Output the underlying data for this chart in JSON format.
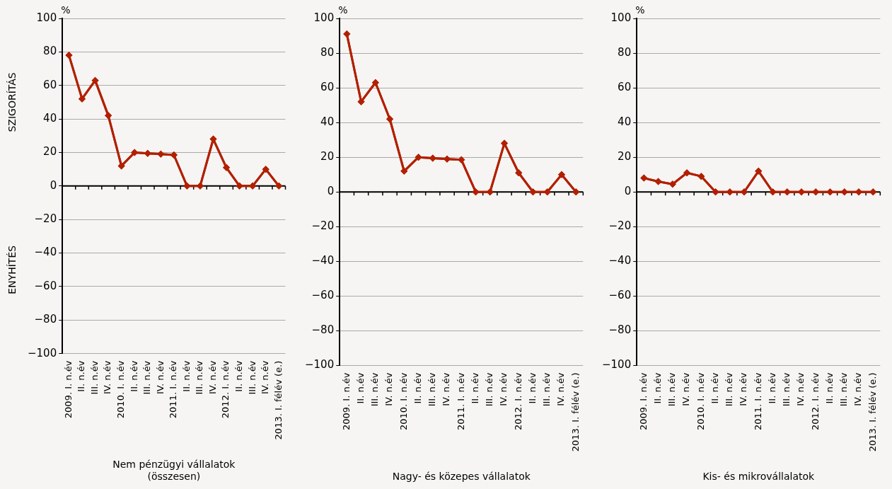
{
  "chart_data": [
    {
      "type": "line",
      "xlabel": "Nem pénzügyi vállalatok\n(összesen)",
      "ylabel": "%",
      "annotations": [
        "SZIGORÍTÁS",
        "ENYHÍTÉS"
      ],
      "categories": [
        "2009. I. n.év",
        "II. n.év",
        "III. n.év",
        "IV. n.év",
        "2010. I. n.év",
        "II. n.év",
        "III. n.év",
        "IV. n.év",
        "2011. I. n.év",
        "II. n.év",
        "III. n.év",
        "IV. n.év",
        "2012. I. n.év",
        "II. n.év",
        "III. n.év",
        "IV. n.év",
        "2013. I. félév (e.)"
      ],
      "series": [
        {
          "color": "#b22000",
          "values": [
            78,
            52,
            63,
            42,
            12,
            20,
            19.5,
            19,
            18.5,
            0,
            0,
            28,
            11,
            0,
            0,
            10,
            0
          ]
        }
      ],
      "ylim": [
        -100,
        100
      ],
      "yticks": [
        {
          "value": -100,
          "label": "−100"
        },
        {
          "value": -80,
          "label": "−80"
        },
        {
          "value": -60,
          "label": "−60"
        },
        {
          "value": -40,
          "label": "−40"
        },
        {
          "value": -20,
          "label": "−20"
        },
        0,
        20,
        40,
        60,
        80,
        100
      ],
      "grid": "y",
      "legend": false,
      "marker": "diamond",
      "line_style": "solid"
    },
    {
      "type": "line",
      "xlabel": "Nagy- és közepes vállalatok",
      "ylabel": "%",
      "categories": [
        "2009. I. n.év",
        "II. n.év",
        "III. n.év",
        "IV. n.év",
        "2010. I. n.év",
        "II. n.év",
        "III. n.év",
        "IV. n.év",
        "2011. I. n.év",
        "II. n.év",
        "III. n.év",
        "IV. n.év",
        "2012. I. n.év",
        "II. n.év",
        "III. n.év",
        "IV. n.év",
        "2013. I. félév (e.)"
      ],
      "series": [
        {
          "color": "#b22000",
          "values": [
            91,
            52,
            63,
            42,
            12,
            20,
            19.5,
            19,
            18.5,
            0,
            0,
            28,
            11,
            0,
            0,
            10,
            0
          ]
        }
      ],
      "ylim": [
        -100,
        100
      ],
      "yticks": [
        {
          "value": -100,
          "label": "−100"
        },
        {
          "value": -80,
          "label": "−80"
        },
        {
          "value": -60,
          "label": "−60"
        },
        {
          "value": -40,
          "label": "−40"
        },
        {
          "value": -20,
          "label": "−20"
        },
        0,
        20,
        40,
        60,
        80,
        100
      ],
      "grid": "y",
      "legend": false,
      "marker": "diamond",
      "line_style": "solid"
    },
    {
      "type": "line",
      "xlabel": "Kis- és mikrovállalatok",
      "ylabel": "%",
      "categories": [
        "2009. I. n.év",
        "II. n.év",
        "III. n.év",
        "IV. n.év",
        "2010. I. n.év",
        "II. n.év",
        "III. n.év",
        "IV. n.év",
        "2011. I. n.év",
        "II. n.év",
        "III. n.év",
        "IV. n.év",
        "2012. I. n.év",
        "II. n.év",
        "III. n.év",
        "IV. n.év",
        "2013. I. félév (e.)"
      ],
      "series": [
        {
          "color": "#b22000",
          "values": [
            8,
            6,
            4.5,
            11,
            9,
            0,
            0,
            0,
            12,
            0,
            0,
            0,
            0,
            0,
            0,
            0,
            0
          ]
        }
      ],
      "ylim": [
        -100,
        100
      ],
      "yticks": [
        {
          "value": -100,
          "label": "−100"
        },
        {
          "value": -80,
          "label": "−80"
        },
        {
          "value": -60,
          "label": "−60"
        },
        {
          "value": -40,
          "label": "−40"
        },
        {
          "value": -20,
          "label": "−20"
        },
        0,
        20,
        40,
        60,
        80,
        100
      ],
      "grid": "y",
      "legend": false,
      "marker": "diamond",
      "line_style": "solid"
    }
  ]
}
